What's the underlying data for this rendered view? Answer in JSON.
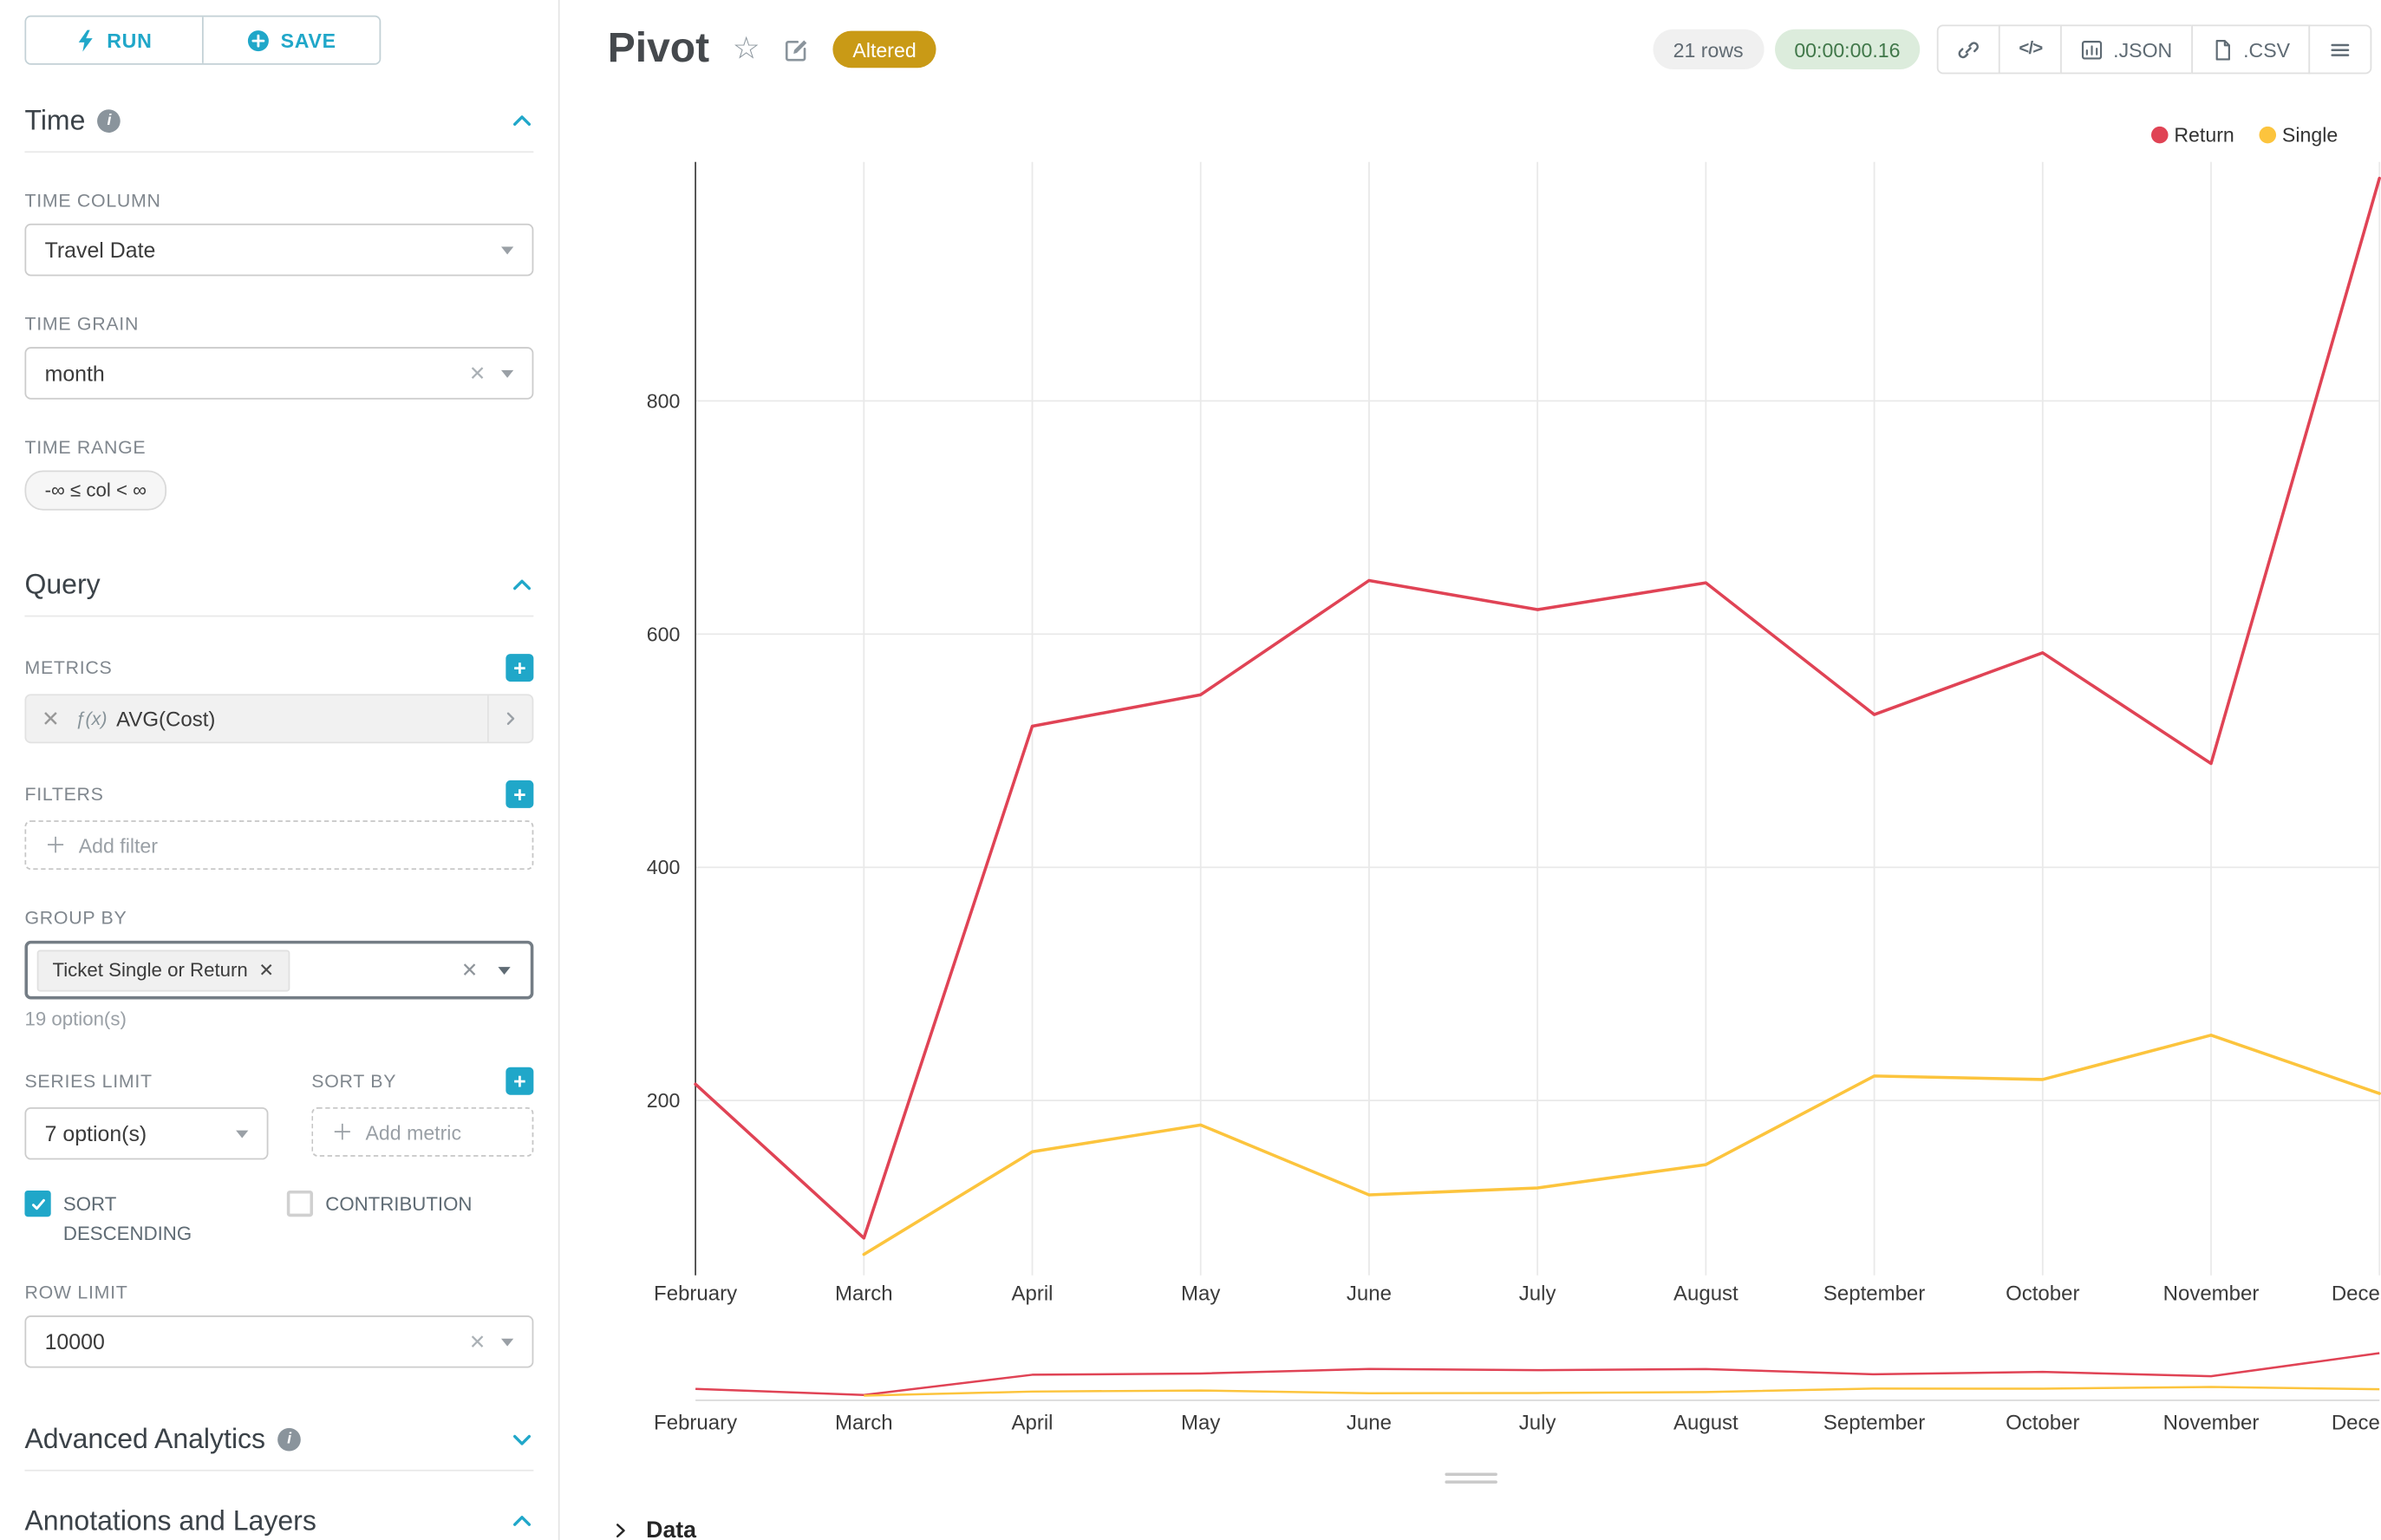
{
  "colors": {
    "accent": "#20a7c9",
    "series_return": "#e04355",
    "series_single": "#fcc43d",
    "altered_badge_bg": "#c99a16",
    "timer_pill_bg": "#dcecdc",
    "timer_pill_text": "#41784a",
    "rows_pill_bg": "#f0f0f0"
  },
  "toolbar": {
    "run": "RUN",
    "save": "SAVE"
  },
  "sidebar": {
    "time": {
      "title": "Time",
      "time_column_label": "TIME COLUMN",
      "time_column_value": "Travel Date",
      "time_grain_label": "TIME GRAIN",
      "time_grain_value": "month",
      "time_range_label": "TIME RANGE",
      "time_range_value": "-∞ ≤ col < ∞"
    },
    "query": {
      "title": "Query",
      "metrics_label": "METRICS",
      "metric_fn": "ƒ(x)",
      "metric_name": "AVG(Cost)",
      "filters_label": "FILTERS",
      "add_filter_placeholder": "Add filter",
      "group_by_label": "GROUP BY",
      "group_by_tag": "Ticket Single or Return",
      "group_by_hint": "19 option(s)",
      "series_limit_label": "SERIES LIMIT",
      "series_limit_value": "7 option(s)",
      "sort_by_label": "SORT BY",
      "add_metric_placeholder": "Add metric",
      "sort_descending_label": "SORT DESCENDING",
      "contribution_label": "CONTRIBUTION",
      "row_limit_label": "ROW LIMIT",
      "row_limit_value": "10000"
    },
    "advanced_title": "Advanced Analytics",
    "annotations_title": "Annotations and Layers"
  },
  "header": {
    "title": "Pivot",
    "badge": "Altered",
    "row_count": "21 rows",
    "timer": "00:00:00.16",
    "json_button": ".JSON",
    "csv_button": ".CSV"
  },
  "chart_data": {
    "type": "line",
    "x": [
      "February",
      "March",
      "April",
      "May",
      "June",
      "July",
      "August",
      "September",
      "October",
      "November",
      "December"
    ],
    "series": [
      {
        "name": "Return",
        "color": "#e04355",
        "values": [
          214,
          82,
          521,
          548,
          646,
          621,
          644,
          531,
          584,
          489,
          991
        ]
      },
      {
        "name": "Single",
        "color": "#fcc43d",
        "values": [
          null,
          68,
          156,
          179,
          119,
          125,
          145,
          221,
          218,
          256,
          206
        ]
      }
    ],
    "yticks": [
      200,
      400,
      600,
      800
    ],
    "ylim": [
      50,
      1005
    ],
    "ylabel": "",
    "xlabel": "",
    "legend": [
      "Return",
      "Single"
    ],
    "legend_position": "top-right",
    "grid": true,
    "has_mini_preview": true
  },
  "footer": {
    "data_label": "Data"
  }
}
